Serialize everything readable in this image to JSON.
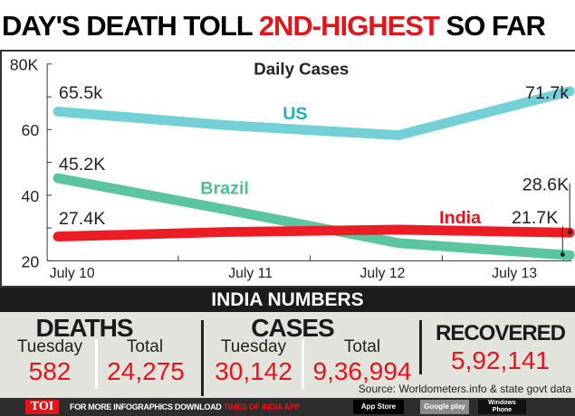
{
  "title": {
    "part1": "DAY'S DEATH TOLL ",
    "highlight": "2ND-HIGHEST",
    "part2": " SO FAR"
  },
  "chart_data": {
    "type": "line",
    "title": "Daily Cases",
    "categories": [
      "July 10",
      "July 11",
      "July 12",
      "July 13"
    ],
    "ylim": [
      20,
      80
    ],
    "yticks": [
      "80K",
      "60",
      "40",
      "20"
    ],
    "grid": false,
    "series": [
      {
        "name": "US",
        "color": "#72d0d6",
        "values": [
          65.5,
          61.3,
          58.3,
          71.7
        ],
        "labels": [
          "65.5k",
          "71.7k"
        ]
      },
      {
        "name": "Brazil",
        "color": "#5bc5a0",
        "values": [
          45.2,
          35.5,
          25.4,
          21.7
        ],
        "labels": [
          "45.2K",
          "21.7K"
        ]
      },
      {
        "name": "India",
        "color": "#ec1c24",
        "values": [
          27.4,
          28.8,
          29.5,
          28.6
        ],
        "labels": [
          "27.4K",
          "28.6K"
        ]
      }
    ]
  },
  "numbers": {
    "heading": "INDIA NUMBERS",
    "deaths": {
      "label": "DEATHS",
      "tuesday_label": "Tuesday",
      "tuesday": "582",
      "total_label": "Total",
      "total": "24,275"
    },
    "cases": {
      "label": "CASES",
      "tuesday_label": "Tuesday",
      "tuesday": "30,142",
      "total_label": "Total",
      "total": "9,36,994"
    },
    "recovered": {
      "label": "RECOVERED",
      "value": "5,92,141"
    },
    "source": "Source: Worldometers.info & state govt data"
  },
  "footer": {
    "logo": "TOI",
    "text": "FOR MORE  INFOGRAPHICS DOWNLOAD ",
    "app": "TIMES OF INDIA  APP",
    "app_store": "App Store",
    "google_play": "Google play",
    "windows": "Windows Phone"
  }
}
